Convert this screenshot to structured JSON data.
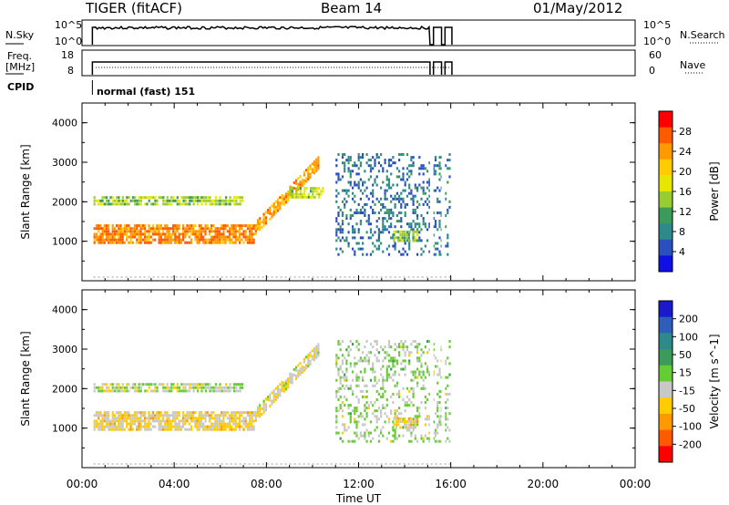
{
  "header": {
    "radar": "TIGER (fitACF)",
    "beam": "Beam 14",
    "date": "01/May/2012"
  },
  "strip_panels": {
    "nsky_label": "N.Sky",
    "nsearch_label": "N.Search",
    "nsky_ticks": [
      "10^5",
      "10^0"
    ],
    "nsearch_ticks": [
      "10^5",
      "10^0"
    ],
    "freq_label_1": "Freq.",
    "freq_label_2": "[MHz]",
    "freq_ticks": [
      "18",
      "8"
    ],
    "nave_label": "Nave",
    "nave_ticks": [
      "60",
      "0"
    ],
    "cpid_label": "CPID",
    "cpid_text": "normal (fast) 151"
  },
  "time_axis": {
    "label": "Time UT",
    "ticks": [
      "00:00",
      "04:00",
      "08:00",
      "12:00",
      "16:00",
      "20:00",
      "00:00"
    ]
  },
  "power_colorbar": {
    "label": "Power [dB]",
    "ticks": [
      "28",
      "24",
      "20",
      "16",
      "12",
      "8",
      "4"
    ],
    "colors": [
      "#ff0000",
      "#ff5a00",
      "#ff9900",
      "#ffcc00",
      "#e6e600",
      "#99cc33",
      "#3c9a5a",
      "#2e8a8a",
      "#2b4fbf",
      "#1010e6"
    ]
  },
  "velocity_colorbar": {
    "label": "Velocity [m s^-1]",
    "ticks": [
      "200",
      "100",
      "50",
      "15",
      "-15",
      "-50",
      "-100",
      "-200"
    ],
    "colors": [
      "#1a1acc",
      "#2e5fb8",
      "#2e8a8a",
      "#3c9a5a",
      "#66cc33",
      "#c8c8c8",
      "#ffcc00",
      "#ff9900",
      "#ff5a00",
      "#ff0000"
    ]
  },
  "chart_data": [
    {
      "type": "heatmap",
      "name": "Power",
      "xlabel": "Time UT",
      "ylabel": "Slant Range [km]",
      "xlim": [
        0,
        24
      ],
      "ylim": [
        0,
        4500
      ],
      "yticks": [
        1000,
        2000,
        3000,
        4000
      ],
      "data_end_hour": 16.0,
      "colorbar_range": [
        0,
        32
      ],
      "echo_regions": [
        {
          "t_start": 0.5,
          "t_end": 7.5,
          "range_center": 1250,
          "range_width": 500,
          "power": 26
        },
        {
          "t_start": 7.5,
          "t_end": 10.3,
          "range_center_start": 1400,
          "range_center_end": 3100,
          "power": 24
        },
        {
          "t_start": 0.5,
          "t_end": 7.0,
          "range_center": 2100,
          "range_width": 250,
          "power": 14
        },
        {
          "t_start": 9.0,
          "t_end": 10.5,
          "range_center": 2300,
          "range_width": 300,
          "power": 16
        },
        {
          "t_start": 11.0,
          "t_end": 16.0,
          "range_center": 2000,
          "range_width": 2600,
          "power": 6
        },
        {
          "t_start": 13.5,
          "t_end": 14.6,
          "range_center": 1200,
          "range_width": 300,
          "power": 14
        }
      ]
    },
    {
      "type": "heatmap",
      "name": "Velocity",
      "xlabel": "Time UT",
      "ylabel": "Slant Range [km]",
      "xlim": [
        0,
        24
      ],
      "ylim": [
        0,
        4500
      ],
      "yticks": [
        1000,
        2000,
        3000,
        4000
      ],
      "data_end_hour": 16.0,
      "colorbar_range": [
        -250,
        250
      ],
      "echo_regions": [
        {
          "t_start": 0.5,
          "t_end": 7.5,
          "range_center": 1250,
          "range_width": 500,
          "velocity": -60
        },
        {
          "t_start": 7.5,
          "t_end": 10.3,
          "range_center_start": 1400,
          "range_center_end": 3100,
          "velocity": -50
        },
        {
          "t_start": 0.5,
          "t_end": 7.0,
          "range_center": 2100,
          "range_width": 250,
          "velocity": -20
        },
        {
          "t_start": 11.0,
          "t_end": 16.0,
          "range_center": 2000,
          "range_width": 2600,
          "velocity": 0
        },
        {
          "t_start": 13.5,
          "t_end": 14.6,
          "range_center": 1200,
          "range_width": 300,
          "velocity": -80
        }
      ]
    }
  ]
}
